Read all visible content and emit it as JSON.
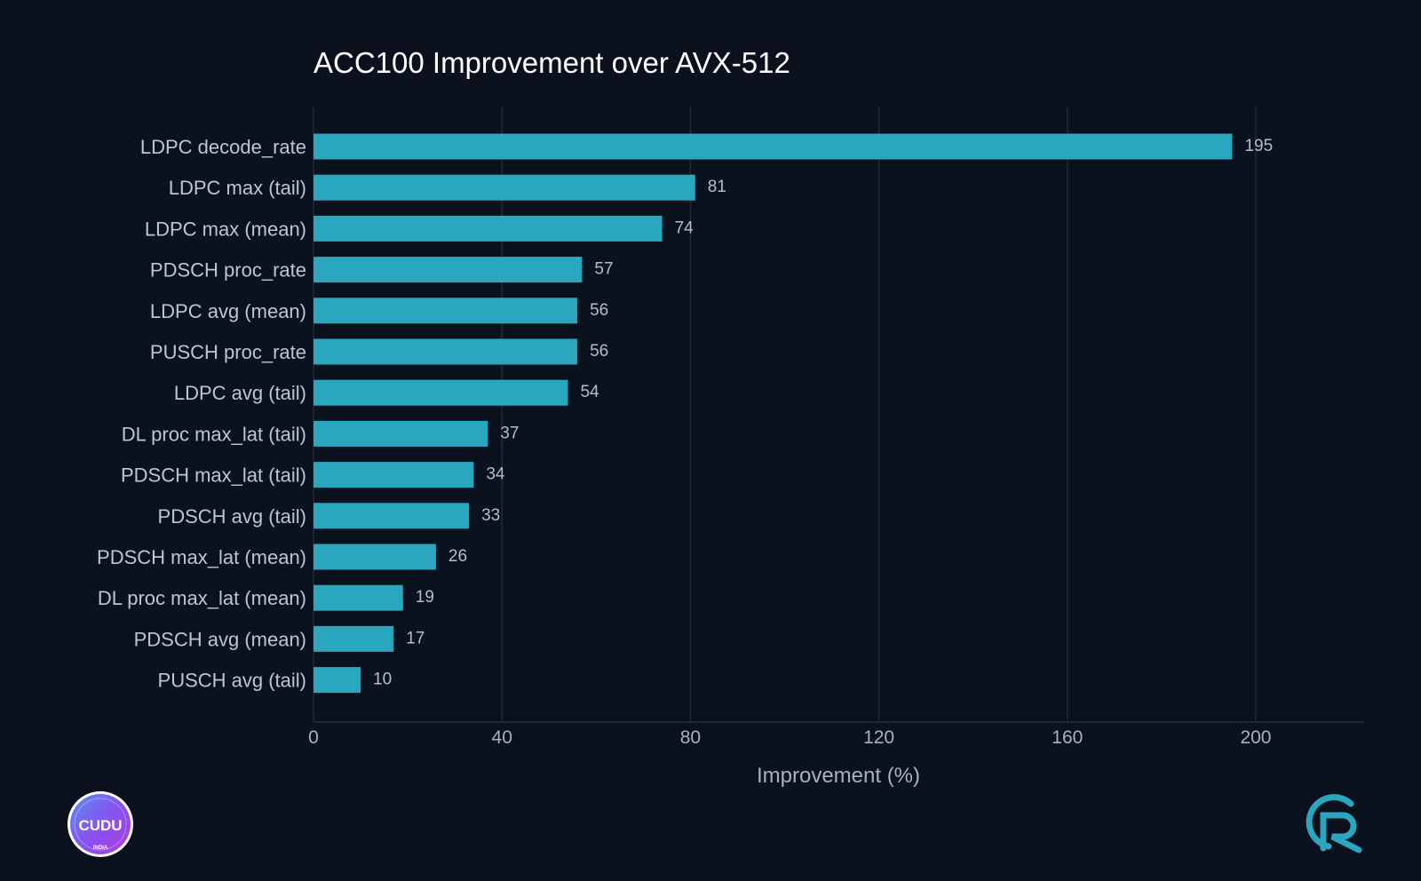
{
  "chart_data": {
    "type": "bar",
    "orientation": "horizontal",
    "title": "ACC100 Improvement over AVX-512",
    "xlabel": "Improvement (%)",
    "ylabel": "",
    "xlim": [
      0,
      223
    ],
    "xticks": [
      0,
      40,
      80,
      120,
      160,
      200
    ],
    "grid": true,
    "bar_color": "#2aa6bf",
    "categories": [
      "LDPC decode_rate",
      "LDPC max (tail)",
      "LDPC max (mean)",
      "PDSCH proc_rate",
      "LDPC avg (mean)",
      "PUSCH proc_rate",
      "LDPC avg (tail)",
      "DL proc max_lat (tail)",
      "PDSCH max_lat (tail)",
      "PDSCH avg (tail)",
      "PDSCH max_lat (mean)",
      "DL proc max_lat (mean)",
      "PDSCH avg (mean)",
      "PUSCH avg (tail)"
    ],
    "values": [
      195,
      81,
      74,
      57,
      56,
      56,
      54,
      37,
      34,
      33,
      26,
      19,
      17,
      10
    ]
  },
  "logos": {
    "left": {
      "icon": "cudu-logo",
      "text": "CUDU",
      "subtext": "INDIA"
    },
    "right": {
      "icon": "cr-logo"
    }
  },
  "colors": {
    "background": "#0b121e",
    "accent": "#2aa6bf"
  }
}
